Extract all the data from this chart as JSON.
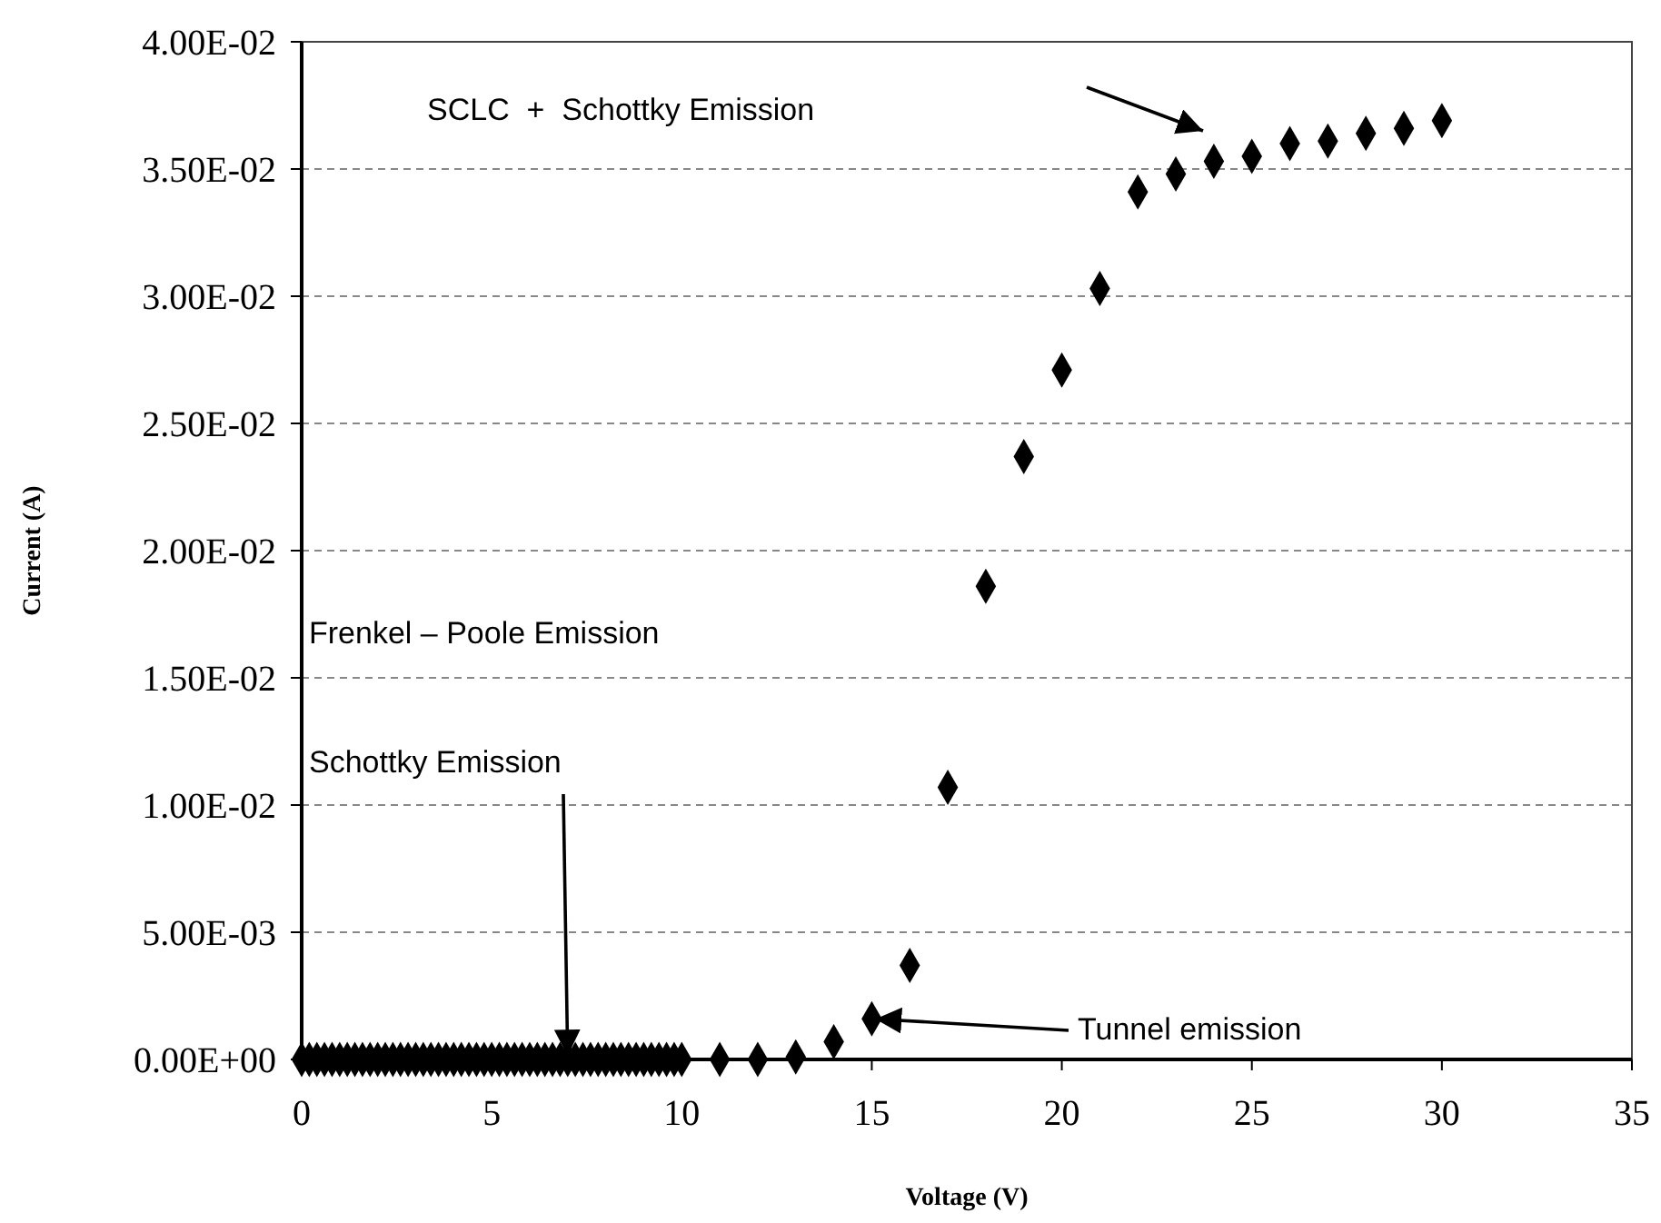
{
  "chart_data": {
    "type": "scatter",
    "xlabel": "Voltage (V)",
    "ylabel": "Current (A)",
    "x": [
      0,
      0.2,
      0.4,
      0.6,
      0.8,
      1,
      1.2,
      1.4,
      1.6,
      1.8,
      2,
      2.2,
      2.4,
      2.6,
      2.8,
      3,
      3.2,
      3.4,
      3.6,
      3.8,
      4,
      4.2,
      4.4,
      4.6,
      4.8,
      5,
      5.2,
      5.4,
      5.6,
      5.8,
      6,
      6.2,
      6.4,
      6.6,
      6.8,
      7,
      7.2,
      7.4,
      7.6,
      7.8,
      8,
      8.2,
      8.4,
      8.6,
      8.8,
      9,
      9.2,
      9.4,
      9.6,
      9.8,
      10,
      11,
      12,
      13,
      14,
      15,
      16,
      17,
      18,
      19,
      20,
      21,
      22,
      23,
      24,
      25,
      26,
      27,
      28,
      29,
      30
    ],
    "series": [
      {
        "color": "#000000",
        "values": [
          0,
          0,
          0,
          0,
          0,
          0,
          0,
          0,
          0,
          0,
          0,
          0,
          0,
          0,
          0,
          0,
          0,
          0,
          0,
          0,
          0,
          0,
          0,
          0,
          0,
          0,
          0,
          0,
          0,
          0,
          0,
          0,
          0,
          0,
          0,
          0,
          0,
          0,
          0,
          0,
          0,
          0,
          0,
          0,
          0,
          0,
          0,
          0,
          0,
          0,
          0,
          0,
          0,
          0.0001,
          0.0007,
          0.0016,
          0.0037,
          0.0107,
          0.0186,
          0.0237,
          0.0271,
          0.0303,
          0.0341,
          0.0348,
          0.0353,
          0.0355,
          0.036,
          0.0361,
          0.0364,
          0.0366,
          0.0369
        ]
      }
    ],
    "xlim": [
      0,
      35
    ],
    "xticks": [
      0,
      5,
      10,
      15,
      20,
      25,
      30,
      35
    ],
    "ylim": [
      0,
      0.04
    ],
    "yticks": [
      {
        "value": 0,
        "label": "0.00E+00"
      },
      {
        "value": 0.005,
        "label": "5.00E-03"
      },
      {
        "value": 0.01,
        "label": "1.00E-02"
      },
      {
        "value": 0.015,
        "label": "1.50E-02"
      },
      {
        "value": 0.02,
        "label": "2.00E-02"
      },
      {
        "value": 0.025,
        "label": "2.50E-02"
      },
      {
        "value": 0.03,
        "label": "3.00E-02"
      },
      {
        "value": 0.035,
        "label": "3.50E-02"
      },
      {
        "value": 0.04,
        "label": "4.00E-02"
      }
    ],
    "grid": "y",
    "marker": "diamond",
    "annotations": [
      "SCLC  +  Schottky Emission",
      "Frenkel – Poole Emission",
      {
        "text": "Schottky Emission",
        "x": 7,
        "y": 0
      },
      {
        "text": "Tunnel emission",
        "x": 15,
        "y": 0.0016
      }
    ]
  }
}
